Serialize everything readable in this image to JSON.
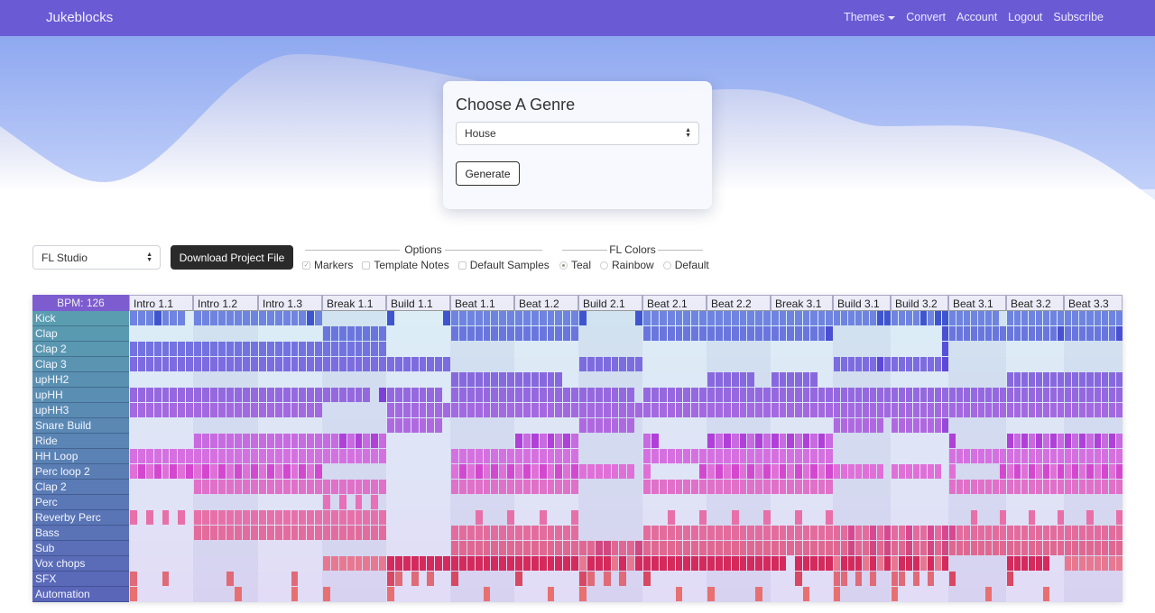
{
  "nav": {
    "brand": "Jukeblocks",
    "links": [
      "Themes",
      "Convert",
      "Account",
      "Logout",
      "Subscribe"
    ]
  },
  "genre_card": {
    "title": "Choose A Genre",
    "genre": "House",
    "generate": "Generate"
  },
  "toolbar": {
    "daw": "FL Studio",
    "download": "Download Project File",
    "options": {
      "legend": "Options",
      "items": [
        {
          "label": "Markers",
          "checked": true
        },
        {
          "label": "Template Notes",
          "checked": false
        },
        {
          "label": "Default Samples",
          "checked": false
        }
      ]
    },
    "fl_colors": {
      "legend": "FL Colors",
      "items": [
        {
          "label": "Teal",
          "selected": true
        },
        {
          "label": "Rainbow",
          "selected": false
        },
        {
          "label": "Default",
          "selected": false
        }
      ]
    }
  },
  "colors": {
    "nav": "#6a5bd4",
    "label_top": "#5a9db0",
    "label_bottom": "#5a66b8"
  },
  "sequencer": {
    "bpm": "BPM: 126",
    "sections": [
      "Intro 1.1",
      "Intro 1.2",
      "Intro 1.3",
      "Break 1.1",
      "Build 1.1",
      "Beat 1.1",
      "Beat 1.2",
      "Build 2.1",
      "Beat 2.1",
      "Beat 2.2",
      "Break 3.1",
      "Build 3.1",
      "Build 3.2",
      "Beat 3.1",
      "Beat 3.2",
      "Beat 3.3"
    ],
    "tracks": [
      {
        "name": "Kick",
        "color": "#6f83e0",
        "dark": "#3f55d0",
        "pattern": [
          "1112111.",
          "11111111",
          "11111121",
          "........",
          "2......2",
          "11111111",
          "11111111",
          "2......2",
          "11111111",
          "11111111",
          "11111111",
          "11111122",
          "11112122",
          "1111111.",
          "11111111",
          "11111111"
        ]
      },
      {
        "name": "Clap",
        "color": "#6a76de",
        "dark": "#4a50d2",
        "pattern": [
          "........",
          "........",
          "........",
          "11111111",
          "........",
          "11111111",
          "11111111",
          "........",
          "11111111",
          "11111111",
          "11111112",
          "........",
          ".......2",
          "11111111",
          "11111112",
          "11111112"
        ]
      },
      {
        "name": "Clap 2",
        "color": "#7372e0",
        "dark": "#5550d8",
        "pattern": [
          "11111111",
          "11111111",
          "11111111",
          "11111111",
          "........",
          "........",
          "........",
          "........",
          "........",
          "........",
          "........",
          "........",
          ".......2",
          "........",
          "........",
          "........"
        ]
      },
      {
        "name": "Clap 3",
        "color": "#7d6be0",
        "dark": "#5e48d8",
        "pattern": [
          "11111111",
          "11111111",
          "11111111",
          "11111111",
          "11111111",
          "........",
          "........",
          "11111111",
          "........",
          "........",
          "........",
          "11111121",
          "11111112",
          "........",
          "........",
          "........"
        ]
      },
      {
        "name": "upHH2",
        "color": "#8868de",
        "dark": "#6a48d8",
        "pattern": [
          "........",
          "........",
          "........",
          "........",
          "........",
          "11111111",
          "111111..",
          "........",
          "........",
          "111111..",
          "111111..",
          "........",
          "........",
          "........",
          "11111111",
          "11111111"
        ]
      },
      {
        "name": "upHH",
        "color": "#9668e0",
        "dark": "#7d40d8",
        "pattern": [
          "11111111",
          "11111111",
          "11111111",
          "111111.2",
          "1111111.",
          "11111111",
          "11111111",
          "1111111.",
          "11111111",
          "11111111",
          "11111111",
          "11111111",
          "11111111",
          "11111111",
          "11111111",
          "11111111"
        ]
      },
      {
        "name": "upHH3",
        "color": "#a468e0",
        "dark": "#8a48d8",
        "pattern": [
          "11111111",
          "11111111",
          "11111111",
          "........",
          "11111111",
          "11111111",
          "11111111",
          "11111111",
          "11111111",
          "11111111",
          "11111111",
          "11111111",
          "11111111",
          "11111111",
          "11111111",
          "11111111"
        ]
      },
      {
        "name": "Snare Build",
        "color": "#b068e0",
        "dark": "#9848d8",
        "pattern": [
          "........",
          "........",
          "........",
          "........",
          "1111111.",
          "........",
          "........",
          "1111111.",
          "........",
          "........",
          "........",
          "1111111.",
          "11111112",
          "........",
          "........",
          "........"
        ]
      },
      {
        "name": "Ride",
        "color": "#c86ae0",
        "dark": "#b040d8",
        "pattern": [
          "........",
          "11111111",
          "11111111",
          "11212121",
          "........",
          "........",
          "21212121",
          "........",
          "12......",
          "21212121",
          "21212121",
          "........",
          "........",
          "2.......",
          "21212121",
          "21212121"
        ]
      },
      {
        "name": "HH Loop",
        "color": "#d670e0",
        "dark": "#c850d8",
        "pattern": [
          "11111111",
          "11111111",
          "11111111",
          "11111111",
          "........",
          "11111111",
          "11111111",
          "........",
          "11111111",
          "11111111",
          "11111111",
          "........",
          "........",
          "11111111",
          "11111111",
          "11111111"
        ]
      },
      {
        "name": "Perc loop 2",
        "color": "#e070d8",
        "dark": "#d448d0",
        "pattern": [
          "12121212",
          "12121212",
          "12121212",
          "........",
          "........",
          "12121212",
          "12121212",
          "1111111.",
          "1......2",
          "12121212",
          "12121212",
          "1111111.",
          "1111111.",
          "1......2",
          "12121212",
          "12121212"
        ]
      },
      {
        "name": "Clap 2",
        "color": "#e070c8",
        "dark": "#d450c0",
        "pattern": [
          "........",
          "11111111",
          "11111111",
          "11111111",
          "........",
          "11111111",
          "11111111",
          "........",
          "11111111",
          "11111111",
          "11111111",
          "........",
          "........",
          "11111111",
          "11111111",
          "11111111"
        ]
      },
      {
        "name": "Perc",
        "color": "#e870b8",
        "dark": "#d850a8",
        "pattern": [
          "........",
          "........",
          "........",
          "1.1.1.1.",
          "........",
          "........",
          "........",
          "........",
          "........",
          "........",
          "........",
          "........",
          "........",
          "........",
          "........",
          "........"
        ]
      },
      {
        "name": "Reverby Perc",
        "color": "#e870a8",
        "dark": "#d85098",
        "pattern": [
          "1.1.1.1.",
          "11111111",
          "11111111",
          "11111111",
          "........",
          "...1...1",
          "...1...1",
          "........",
          "...1...1",
          "...1...1",
          "...1...1",
          "........",
          "........",
          "...1...1",
          "...1...1",
          "...1...1"
        ]
      },
      {
        "name": "Bass",
        "color": "#e46c9c",
        "dark": "#d84890",
        "pattern": [
          "........",
          "11111111",
          "11111111",
          "11111111",
          "........",
          "11111111",
          "11111111",
          "........",
          "11111111",
          "11111111",
          "11111111",
          "11211212",
          "11211212",
          "21111111",
          "11111111",
          "11111111"
        ]
      },
      {
        "name": "Sub",
        "color": "#e06890",
        "dark": "#d04880",
        "pattern": [
          "........",
          "........",
          "........",
          "........",
          "........",
          "11111111",
          "11111111",
          "11221112",
          "11111111",
          "11111111",
          "11111111",
          "11211212",
          "11211212",
          "11111111",
          "11111111",
          "11111111"
        ]
      },
      {
        "name": "Vox chops",
        "color": "#e87890",
        "dark": "#d42a5c",
        "pattern": [
          "........",
          "........",
          "........",
          "11111111",
          "22222222",
          "22222222",
          "22222222",
          "12221212",
          "22222222",
          "22222222",
          "22.22222",
          "12221212",
          "12221212",
          "........",
          "222222..",
          "11111111"
        ]
      },
      {
        "name": "SFX",
        "color": "#e06a78",
        "dark": "#d84862",
        "pattern": [
          "1...1...",
          "....1...",
          "....1...",
          "........",
          "21.1.1..",
          "2.......",
          "2.......",
          "21.1.1..",
          "2.......",
          "........",
          "...2....",
          "11.1.1..",
          "11.1.1..",
          "2.......",
          "2.......",
          "........"
        ]
      },
      {
        "name": "Automation",
        "color": "#e87070",
        "dark": "#e06060",
        "pattern": [
          "1.......",
          ".....1..",
          "....1...",
          "1.......",
          "1.......",
          "....1...",
          "....1...",
          "1.......",
          "....1...",
          "1.....1.",
          "....1...",
          "1.......",
          "1.......",
          ".....1..",
          ".....1..",
          "........"
        ]
      }
    ]
  }
}
